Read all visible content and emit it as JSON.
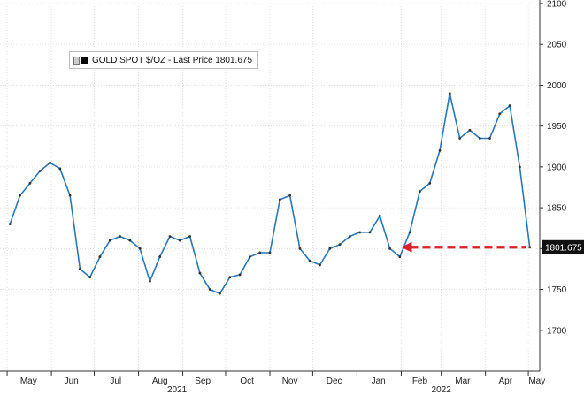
{
  "chart_data": {
    "type": "line",
    "title": "",
    "legend": {
      "label": "GOLD SPOT $/OZ - Last Price 1801.675",
      "placement": "top-left"
    },
    "last_price_label": "1801.675",
    "ylim": [
      1650,
      2100
    ],
    "yticks": [
      "1700",
      "1750",
      "1800",
      "1850",
      "1900",
      "1950",
      "2000",
      "2050",
      "2100"
    ],
    "months": [
      "May",
      "Jun",
      "Jul",
      "Aug",
      "Sep",
      "Oct",
      "Nov",
      "Dec",
      "Jan",
      "Feb",
      "Mar",
      "Apr",
      "May"
    ],
    "years": [
      "2021",
      "2022"
    ],
    "grid": true,
    "annotation": "dashed red arrow pointing left at last price level",
    "series": [
      {
        "x": [
          "2021-05-03",
          "2021-05-10",
          "2021-05-17",
          "2021-05-24",
          "2021-05-31",
          "2021-06-07",
          "2021-06-14",
          "2021-06-21",
          "2021-06-28",
          "2021-07-05",
          "2021-07-12",
          "2021-07-19",
          "2021-07-26",
          "2021-08-02",
          "2021-08-09",
          "2021-08-16",
          "2021-08-23",
          "2021-08-30",
          "2021-09-06",
          "2021-09-13",
          "2021-09-20",
          "2021-09-27",
          "2021-10-04",
          "2021-10-11",
          "2021-10-18",
          "2021-10-25",
          "2021-11-01",
          "2021-11-08",
          "2021-11-15",
          "2021-11-22",
          "2021-11-29",
          "2021-12-06",
          "2021-12-13",
          "2021-12-20",
          "2021-12-27",
          "2022-01-03",
          "2022-01-10",
          "2022-01-17",
          "2022-01-24",
          "2022-01-31",
          "2022-02-07",
          "2022-02-14",
          "2022-02-21",
          "2022-02-28",
          "2022-03-07",
          "2022-03-14",
          "2022-03-21",
          "2022-03-28",
          "2022-04-04",
          "2022-04-11",
          "2022-04-18",
          "2022-04-25",
          "2022-05-02"
        ],
        "values": [
          1830,
          1865,
          1880,
          1895,
          1905,
          1898,
          1865,
          1775,
          1765,
          1790,
          1810,
          1815,
          1810,
          1800,
          1760,
          1790,
          1815,
          1810,
          1815,
          1770,
          1750,
          1745,
          1765,
          1768,
          1790,
          1795,
          1795,
          1860,
          1865,
          1800,
          1785,
          1780,
          1800,
          1805,
          1815,
          1820,
          1820,
          1840,
          1800,
          1790,
          1820,
          1870,
          1880,
          1920,
          1990,
          1935,
          1945,
          1935,
          1935,
          1965,
          1975,
          1900,
          1801.675
        ]
      }
    ]
  }
}
